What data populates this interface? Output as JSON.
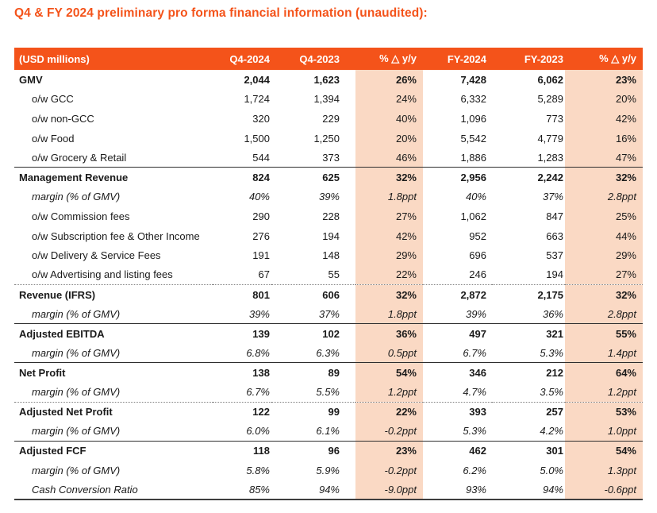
{
  "title": "Q4 & FY 2024 preliminary pro forma financial information (unaudited):",
  "colors": {
    "accent_orange": "#F4531A",
    "highlight_peach": "#FAD9C4",
    "header_text": "#FFFFFF",
    "body_text": "#1A1A1A"
  },
  "table": {
    "columns": [
      "(USD millions)",
      "Q4-2024",
      "Q4-2023",
      "% △ y/y",
      "FY-2024",
      "FY-2023",
      "% △ y/y"
    ],
    "rows": [
      {
        "label": "GMV",
        "type": "total",
        "divider": null,
        "values": [
          "2,044",
          "1,623",
          "26%",
          "7,428",
          "6,062",
          "23%"
        ]
      },
      {
        "label": "o/w GCC",
        "type": "sub",
        "divider": null,
        "values": [
          "1,724",
          "1,394",
          "24%",
          "6,332",
          "5,289",
          "20%"
        ]
      },
      {
        "label": "o/w non-GCC",
        "type": "sub",
        "divider": null,
        "values": [
          "320",
          "229",
          "40%",
          "1,096",
          "773",
          "42%"
        ]
      },
      {
        "label": "o/w Food",
        "type": "sub",
        "divider": null,
        "values": [
          "1,500",
          "1,250",
          "20%",
          "5,542",
          "4,779",
          "16%"
        ]
      },
      {
        "label": "o/w Grocery & Retail",
        "type": "sub",
        "divider": null,
        "values": [
          "544",
          "373",
          "46%",
          "1,886",
          "1,283",
          "47%"
        ]
      },
      {
        "label": "Management Revenue",
        "type": "total",
        "divider": "solid",
        "values": [
          "824",
          "625",
          "32%",
          "2,956",
          "2,242",
          "32%"
        ]
      },
      {
        "label": "margin (% of GMV)",
        "type": "margin",
        "divider": null,
        "values": [
          "40%",
          "39%",
          "1.8ppt",
          "40%",
          "37%",
          "2.8ppt"
        ]
      },
      {
        "label": "o/w Commission fees",
        "type": "sub",
        "divider": null,
        "values": [
          "290",
          "228",
          "27%",
          "1,062",
          "847",
          "25%"
        ]
      },
      {
        "label": "o/w Subscription fee & Other Income",
        "type": "sub",
        "divider": null,
        "values": [
          "276",
          "194",
          "42%",
          "952",
          "663",
          "44%"
        ]
      },
      {
        "label": "o/w Delivery & Service Fees",
        "type": "sub",
        "divider": null,
        "values": [
          "191",
          "148",
          "29%",
          "696",
          "537",
          "29%"
        ]
      },
      {
        "label": "o/w Advertising and listing fees",
        "type": "sub",
        "divider": null,
        "values": [
          "67",
          "55",
          "22%",
          "246",
          "194",
          "27%"
        ]
      },
      {
        "label": "Revenue (IFRS)",
        "type": "total",
        "divider": "dotted",
        "values": [
          "801",
          "606",
          "32%",
          "2,872",
          "2,175",
          "32%"
        ]
      },
      {
        "label": "margin (% of GMV)",
        "type": "margin",
        "divider": null,
        "values": [
          "39%",
          "37%",
          "1.8ppt",
          "39%",
          "36%",
          "2.8ppt"
        ]
      },
      {
        "label": "Adjusted EBITDA",
        "type": "total",
        "divider": "solid",
        "values": [
          "139",
          "102",
          "36%",
          "497",
          "321",
          "55%"
        ]
      },
      {
        "label": "margin (% of GMV)",
        "type": "margin",
        "divider": null,
        "values": [
          "6.8%",
          "6.3%",
          "0.5ppt",
          "6.7%",
          "5.3%",
          "1.4ppt"
        ]
      },
      {
        "label": "Net Profit",
        "type": "total",
        "divider": "solid",
        "values": [
          "138",
          "89",
          "54%",
          "346",
          "212",
          "64%"
        ]
      },
      {
        "label": "margin (% of GMV)",
        "type": "margin",
        "divider": null,
        "values": [
          "6.7%",
          "5.5%",
          "1.2ppt",
          "4.7%",
          "3.5%",
          "1.2ppt"
        ]
      },
      {
        "label": "Adjusted Net Profit",
        "type": "total",
        "divider": "dotted",
        "values": [
          "122",
          "99",
          "22%",
          "393",
          "257",
          "53%"
        ]
      },
      {
        "label": "margin (% of GMV)",
        "type": "margin",
        "divider": null,
        "values": [
          "6.0%",
          "6.1%",
          "-0.2ppt",
          "5.3%",
          "4.2%",
          "1.0ppt"
        ]
      },
      {
        "label": "Adjusted FCF",
        "type": "total",
        "divider": "solid",
        "values": [
          "118",
          "96",
          "23%",
          "462",
          "301",
          "54%"
        ]
      },
      {
        "label": "margin (% of GMV)",
        "type": "margin",
        "divider": null,
        "values": [
          "5.8%",
          "5.9%",
          "-0.2ppt",
          "6.2%",
          "5.0%",
          "1.3ppt"
        ]
      },
      {
        "label": "Cash Conversion Ratio",
        "type": "margin",
        "divider": null,
        "values": [
          "85%",
          "94%",
          "-9.0ppt",
          "93%",
          "94%",
          "-0.6ppt"
        ]
      }
    ]
  }
}
